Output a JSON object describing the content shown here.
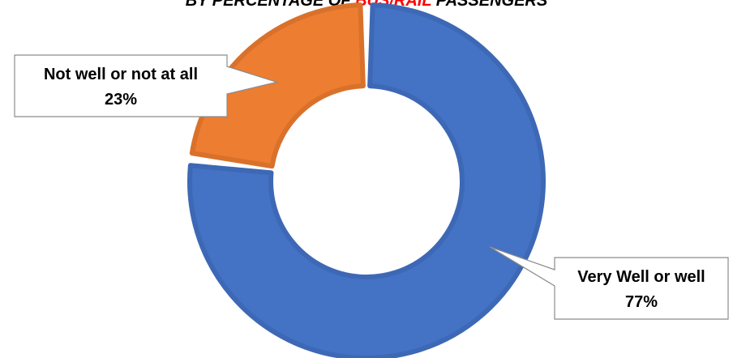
{
  "chart_data": {
    "type": "pie",
    "title_parts": [
      "BY PERCENTAGE OF ",
      "BUS/RAIL",
      " PASSENGERS"
    ],
    "slices": [
      {
        "label": "Very Well or well",
        "value": 77,
        "value_label": "77%",
        "color": "#4472c4",
        "edge": "#3d68b5"
      },
      {
        "label": "Not well or not at all",
        "value": 23,
        "value_label": "23%",
        "color": "#ed7d31",
        "edge": "#d9712b"
      }
    ],
    "title_highlight_color": "#ff0000"
  }
}
